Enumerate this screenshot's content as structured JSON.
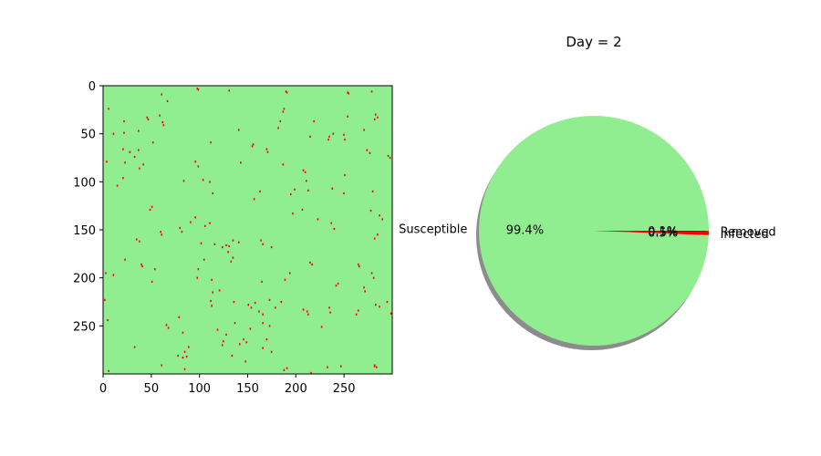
{
  "chart_data": [
    {
      "type": "heatmap",
      "grid_size": [
        300,
        300
      ],
      "xlim": [
        0,
        300
      ],
      "ylim": [
        300,
        0
      ],
      "x_ticks": [
        0,
        50,
        100,
        150,
        200,
        250
      ],
      "y_ticks": [
        0,
        50,
        100,
        150,
        200,
        250
      ],
      "x_tick_labels": [
        "0",
        "50",
        "100",
        "150",
        "200",
        "250"
      ],
      "y_tick_labels": [
        "0",
        "50",
        "100",
        "150",
        "200",
        "250"
      ],
      "colors": {
        "Susceptible": "#90ee90",
        "Infected": "#ff0000",
        "Removed": "#8b0000"
      },
      "infected_cells": [
        [
          97,
          2
        ],
        [
          98,
          3
        ],
        [
          130,
          4
        ],
        [
          189,
          5
        ],
        [
          190,
          6
        ],
        [
          253,
          6
        ],
        [
          254,
          7
        ],
        [
          278,
          5
        ],
        [
          60,
          8
        ],
        [
          66,
          15
        ],
        [
          21,
          36
        ],
        [
          45,
          32
        ],
        [
          46,
          34
        ],
        [
          58,
          30
        ],
        [
          61,
          37
        ],
        [
          62,
          40
        ],
        [
          183,
          36
        ],
        [
          186,
          26
        ],
        [
          187,
          23
        ],
        [
          218,
          36
        ],
        [
          253,
          31
        ],
        [
          281,
          34
        ],
        [
          284,
          32
        ],
        [
          282,
          29
        ],
        [
          5,
          23
        ],
        [
          10,
          49
        ],
        [
          21,
          48
        ],
        [
          36,
          46
        ],
        [
          140,
          45
        ],
        [
          181,
          43
        ],
        [
          20,
          65
        ],
        [
          27,
          68
        ],
        [
          36,
          66
        ],
        [
          3,
          78
        ],
        [
          32,
          73
        ],
        [
          51,
          58
        ],
        [
          111,
          58
        ],
        [
          154,
          62
        ],
        [
          155,
          60
        ],
        [
          169,
          65
        ],
        [
          170,
          68
        ],
        [
          214,
          52
        ],
        [
          238,
          49
        ],
        [
          249,
          50
        ],
        [
          250,
          55
        ],
        [
          233,
          55
        ],
        [
          234,
          52
        ],
        [
          270,
          45
        ],
        [
          273,
          66
        ],
        [
          276,
          69
        ],
        [
          297,
          74
        ],
        [
          295,
          72
        ],
        [
          22,
          79
        ],
        [
          37,
          85
        ],
        [
          41,
          81
        ],
        [
          95,
          78
        ],
        [
          98,
          83
        ],
        [
          142,
          79
        ],
        [
          186,
          81
        ],
        [
          207,
          87
        ],
        [
          209,
          89
        ],
        [
          250,
          92
        ],
        [
          20,
          95
        ],
        [
          14,
          103
        ],
        [
          83,
          98
        ],
        [
          103,
          97
        ],
        [
          110,
          99
        ],
        [
          156,
          117
        ],
        [
          162,
          109
        ],
        [
          113,
          111
        ],
        [
          210,
          98
        ],
        [
          212,
          108
        ],
        [
          198,
          107
        ],
        [
          194,
          112
        ],
        [
          237,
          106
        ],
        [
          249,
          111
        ],
        [
          279,
          109
        ],
        [
          277,
          129
        ],
        [
          196,
          132
        ],
        [
          222,
          138
        ],
        [
          206,
          128
        ],
        [
          236,
          142
        ],
        [
          239,
          148
        ],
        [
          286,
          134
        ],
        [
          289,
          138
        ],
        [
          284,
          154
        ],
        [
          281,
          158
        ],
        [
          95,
          136
        ],
        [
          90,
          141
        ],
        [
          105,
          145
        ],
        [
          110,
          142
        ],
        [
          79,
          147
        ],
        [
          81,
          151
        ],
        [
          59,
          151
        ],
        [
          60,
          154
        ],
        [
          50,
          125
        ],
        [
          48,
          128
        ],
        [
          101,
          163
        ],
        [
          115,
          164
        ],
        [
          123,
          167
        ],
        [
          127,
          165
        ],
        [
          130,
          166
        ],
        [
          134,
          160
        ],
        [
          140,
          162
        ],
        [
          163,
          160
        ],
        [
          165,
          164
        ],
        [
          174,
          167
        ],
        [
          34,
          159
        ],
        [
          37,
          161
        ],
        [
          129,
          172
        ],
        [
          22,
          180
        ],
        [
          39,
          185
        ],
        [
          40,
          187
        ],
        [
          53,
          190
        ],
        [
          98,
          190
        ],
        [
          104,
          180
        ],
        [
          134,
          178
        ],
        [
          132,
          182
        ],
        [
          214,
          183
        ],
        [
          216,
          185
        ],
        [
          264,
          185
        ],
        [
          265,
          187
        ],
        [
          278,
          194
        ],
        [
          280,
          199
        ],
        [
          2,
          194
        ],
        [
          10,
          196
        ],
        [
          50,
          203
        ],
        [
          97,
          199
        ],
        [
          112,
          201
        ],
        [
          164,
          203
        ],
        [
          188,
          201
        ],
        [
          193,
          194
        ],
        [
          270,
          209
        ],
        [
          271,
          213
        ],
        [
          241,
          207
        ],
        [
          243,
          205
        ],
        [
          111,
          223
        ],
        [
          112,
          228
        ],
        [
          120,
          212
        ],
        [
          113,
          214
        ],
        [
          135,
          224
        ],
        [
          150,
          227
        ],
        [
          153,
          230
        ],
        [
          157,
          225
        ],
        [
          172,
          222
        ],
        [
          184,
          224
        ],
        [
          161,
          234
        ],
        [
          165,
          237
        ],
        [
          178,
          230
        ],
        [
          207,
          232
        ],
        [
          211,
          234
        ],
        [
          212,
          237
        ],
        [
          234,
          230
        ],
        [
          226,
          250
        ],
        [
          235,
          235
        ],
        [
          262,
          237
        ],
        [
          264,
          233
        ],
        [
          282,
          227
        ],
        [
          286,
          229
        ],
        [
          294,
          224
        ],
        [
          298,
          236
        ],
        [
          1,
          222
        ],
        [
          4,
          243
        ],
        [
          65,
          248
        ],
        [
          67,
          251
        ],
        [
          78,
          240
        ],
        [
          82,
          256
        ],
        [
          118,
          253
        ],
        [
          127,
          258
        ],
        [
          136,
          246
        ],
        [
          152,
          252
        ],
        [
          165,
          246
        ],
        [
          172,
          249
        ],
        [
          124,
          265
        ],
        [
          123,
          269
        ],
        [
          141,
          268
        ],
        [
          145,
          263
        ],
        [
          148,
          266
        ],
        [
          169,
          263
        ],
        [
          165,
          272
        ],
        [
          32,
          271
        ],
        [
          77,
          280
        ],
        [
          82,
          282
        ],
        [
          86,
          281
        ],
        [
          84,
          276
        ],
        [
          133,
          280
        ],
        [
          147,
          286
        ],
        [
          174,
          276
        ],
        [
          187,
          295
        ],
        [
          190,
          293
        ],
        [
          232,
          292
        ],
        [
          246,
          291
        ],
        [
          281,
          290
        ],
        [
          283,
          292
        ],
        [
          281,
          291
        ],
        [
          215,
          298
        ],
        [
          5,
          296
        ],
        [
          60,
          290
        ],
        [
          88,
          271
        ],
        [
          84,
          294
        ]
      ]
    },
    {
      "type": "pie",
      "title": "Day = 2",
      "labels": [
        "Susceptible",
        "Infected",
        "Removed"
      ],
      "values": [
        99.4,
        0.5,
        0.1
      ],
      "autopct_labels": [
        "99.4%",
        "0.5%",
        "0.1%"
      ],
      "colors": [
        "#90ee90",
        "#ff0000",
        "#8b0000"
      ],
      "shadow": true
    }
  ]
}
